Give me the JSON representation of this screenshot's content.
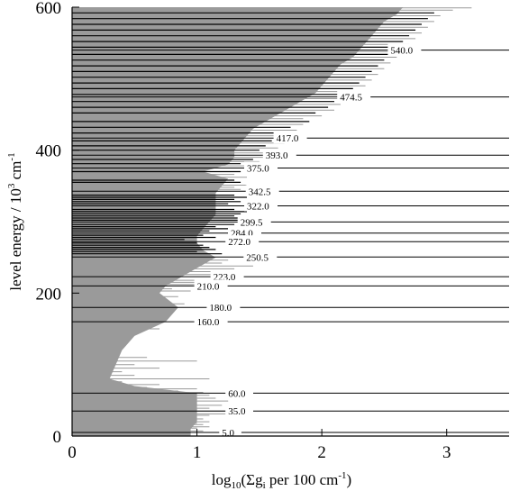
{
  "chart_data": {
    "type": "bar",
    "orientation": "horizontal",
    "xlabel": {
      "prefix": "log",
      "sub1": "10",
      "mid": "(Σg",
      "sub2": "i",
      "tail": " per 100 cm",
      "sup": "-1",
      "close": ")"
    },
    "ylabel": {
      "text": "level energy / 10",
      "sup1": "3",
      "tail": " cm",
      "sup2": "-1"
    },
    "xlim": [
      0,
      3.5
    ],
    "ylim": [
      0,
      600
    ],
    "xticks": [
      0,
      1,
      2,
      3
    ],
    "xtick_labels": [
      "0",
      "1",
      "2",
      "3"
    ],
    "yticks": [
      0,
      200,
      400,
      600
    ],
    "ytick_labels": [
      "0",
      "200",
      "400",
      "600"
    ],
    "grid": false,
    "ionization_thresholds": [
      {
        "energy": 540.0,
        "label": "540.0"
      },
      {
        "energy": 474.5,
        "label": "474.5"
      },
      {
        "energy": 417.0,
        "label": "417.0"
      },
      {
        "energy": 393.0,
        "label": "393.0"
      },
      {
        "energy": 375.0,
        "label": "375.0"
      },
      {
        "energy": 342.5,
        "label": "342.5"
      },
      {
        "energy": 322.0,
        "label": "322.0"
      },
      {
        "energy": 299.5,
        "label": "299.5"
      },
      {
        "energy": 284.0,
        "label": "284.0"
      },
      {
        "energy": 272.0,
        "label": "272.0"
      },
      {
        "energy": 250.5,
        "label": "250.5"
      },
      {
        "energy": 223.0,
        "label": "223.0"
      },
      {
        "energy": 210.0,
        "label": "210.0"
      },
      {
        "energy": 180.0,
        "label": "180.0"
      },
      {
        "energy": 160.0,
        "label": "160.0"
      },
      {
        "energy": 60.0,
        "label": "60.0"
      },
      {
        "energy": 35.0,
        "label": "35.0"
      },
      {
        "energy": 5.0,
        "label": "5.0"
      }
    ],
    "envelope": [
      [
        0,
        0.95
      ],
      [
        10,
        0.95
      ],
      [
        20,
        1.0
      ],
      [
        30,
        1.0
      ],
      [
        40,
        1.0
      ],
      [
        50,
        1.0
      ],
      [
        60,
        1.0
      ],
      [
        70,
        0.5
      ],
      [
        80,
        0.3
      ],
      [
        100,
        0.35
      ],
      [
        120,
        0.4
      ],
      [
        140,
        0.5
      ],
      [
        160,
        0.75
      ],
      [
        180,
        0.85
      ],
      [
        200,
        0.7
      ],
      [
        210,
        0.75
      ],
      [
        220,
        0.85
      ],
      [
        230,
        0.95
      ],
      [
        240,
        1.05
      ],
      [
        250,
        1.15
      ],
      [
        260,
        1.05
      ],
      [
        270,
        1.0
      ],
      [
        280,
        1.0
      ],
      [
        290,
        1.05
      ],
      [
        300,
        1.1
      ],
      [
        310,
        1.15
      ],
      [
        320,
        1.15
      ],
      [
        330,
        1.15
      ],
      [
        340,
        1.15
      ],
      [
        350,
        1.2
      ],
      [
        360,
        1.25
      ],
      [
        370,
        1.05
      ],
      [
        380,
        1.25
      ],
      [
        390,
        1.3
      ],
      [
        400,
        1.3
      ],
      [
        410,
        1.35
      ],
      [
        420,
        1.4
      ],
      [
        430,
        1.45
      ],
      [
        440,
        1.55
      ],
      [
        450,
        1.65
      ],
      [
        460,
        1.75
      ],
      [
        470,
        1.85
      ],
      [
        480,
        1.95
      ],
      [
        490,
        2.0
      ],
      [
        500,
        2.05
      ],
      [
        510,
        2.1
      ],
      [
        520,
        2.15
      ],
      [
        530,
        2.25
      ],
      [
        540,
        2.3
      ],
      [
        550,
        2.35
      ],
      [
        560,
        2.4
      ],
      [
        570,
        2.45
      ],
      [
        580,
        2.5
      ],
      [
        590,
        2.6
      ],
      [
        600,
        2.65
      ]
    ],
    "bars": [
      [
        2,
        0.7,
        "gray"
      ],
      [
        5,
        0.6,
        "gray"
      ],
      [
        7,
        1.05,
        "gray"
      ],
      [
        9,
        0.9,
        "gray"
      ],
      [
        11,
        1.0,
        "gray"
      ],
      [
        13,
        1.1,
        "gray"
      ],
      [
        14,
        0.8,
        "gray"
      ],
      [
        16,
        1.05,
        "gray"
      ],
      [
        18,
        1.0,
        "gray"
      ],
      [
        20,
        1.1,
        "gray"
      ],
      [
        22,
        0.7,
        "gray"
      ],
      [
        24,
        1.05,
        "gray"
      ],
      [
        27,
        0.9,
        "gray"
      ],
      [
        29,
        1.1,
        "gray"
      ],
      [
        31,
        1.4,
        "gray"
      ],
      [
        33,
        0.8,
        "gray"
      ],
      [
        35,
        1.3,
        "gray"
      ],
      [
        37,
        1.0,
        "gray"
      ],
      [
        39,
        1.1,
        "gray"
      ],
      [
        41,
        0.85,
        "gray"
      ],
      [
        43,
        1.2,
        "gray"
      ],
      [
        45,
        1.0,
        "gray"
      ],
      [
        47,
        0.95,
        "gray"
      ],
      [
        49,
        1.25,
        "gray"
      ],
      [
        51,
        1.0,
        "gray"
      ],
      [
        53,
        1.15,
        "gray"
      ],
      [
        55,
        0.9,
        "gray"
      ],
      [
        57,
        1.1,
        "gray"
      ],
      [
        59,
        0.95,
        "gray"
      ],
      [
        61,
        1.05,
        "gray"
      ],
      [
        63,
        0.85,
        "gray"
      ],
      [
        66,
        1.0,
        "gray"
      ],
      [
        68,
        0.6,
        "gray"
      ],
      [
        72,
        0.7,
        "gray"
      ],
      [
        76,
        0.4,
        "gray"
      ],
      [
        80,
        1.1,
        "gray"
      ],
      [
        85,
        0.5,
        "gray"
      ],
      [
        90,
        0.4,
        "gray"
      ],
      [
        95,
        0.7,
        "gray"
      ],
      [
        100,
        0.5,
        "gray"
      ],
      [
        105,
        1.0,
        "gray"
      ],
      [
        110,
        0.6,
        "gray"
      ],
      [
        115,
        0.3,
        "gray"
      ],
      [
        120,
        0.1,
        "gray"
      ],
      [
        135,
        0.3,
        "gray"
      ],
      [
        145,
        0.55,
        "gray"
      ],
      [
        150,
        0.7,
        "gray"
      ],
      [
        155,
        0.4,
        "gray"
      ],
      [
        165,
        0.7,
        "gray"
      ],
      [
        170,
        0.75,
        "gray"
      ],
      [
        175,
        0.8,
        "gray"
      ],
      [
        185,
        0.9,
        "gray"
      ],
      [
        190,
        0.6,
        "gray"
      ],
      [
        195,
        0.85,
        "gray"
      ],
      [
        198,
        0.7,
        "gray"
      ],
      [
        203,
        0.95,
        "gray"
      ],
      [
        206,
        0.8,
        "gray"
      ],
      [
        212,
        1.2,
        "gray"
      ],
      [
        215,
        1.0,
        "gray"
      ],
      [
        218,
        1.3,
        "gray"
      ],
      [
        226,
        1.15,
        "gray"
      ],
      [
        230,
        1.2,
        "gray"
      ],
      [
        234,
        1.3,
        "gray"
      ],
      [
        238,
        1.45,
        "gray"
      ],
      [
        242,
        1.2,
        "gray"
      ],
      [
        246,
        1.25,
        "gray"
      ],
      [
        255,
        1.2,
        "black"
      ],
      [
        258,
        1.0,
        "black"
      ],
      [
        261,
        1.15,
        "black"
      ],
      [
        264,
        1.1,
        "black"
      ],
      [
        267,
        1.05,
        "black"
      ],
      [
        270,
        1.0,
        "black"
      ],
      [
        275,
        0.9,
        "black"
      ],
      [
        278,
        1.15,
        "black"
      ],
      [
        281,
        1.05,
        "black"
      ],
      [
        287,
        1.1,
        "black"
      ],
      [
        290,
        1.25,
        "black"
      ],
      [
        293,
        1.15,
        "black"
      ],
      [
        296,
        1.3,
        "black"
      ],
      [
        302,
        1.35,
        "black"
      ],
      [
        305,
        1.4,
        "black"
      ],
      [
        308,
        1.3,
        "black"
      ],
      [
        311,
        1.35,
        "black"
      ],
      [
        314,
        1.4,
        "black"
      ],
      [
        317,
        1.3,
        "black"
      ],
      [
        325,
        1.25,
        "black"
      ],
      [
        328,
        1.35,
        "black"
      ],
      [
        331,
        1.3,
        "black"
      ],
      [
        334,
        1.4,
        "black"
      ],
      [
        337,
        1.3,
        "black"
      ],
      [
        345,
        1.35,
        "gray"
      ],
      [
        348,
        1.3,
        "gray"
      ],
      [
        351,
        1.4,
        "gray"
      ],
      [
        355,
        1.35,
        "black"
      ],
      [
        358,
        1.3,
        "black"
      ],
      [
        362,
        1.4,
        "gray"
      ],
      [
        366,
        1.3,
        "gray"
      ],
      [
        370,
        1.35,
        "black"
      ],
      [
        378,
        1.4,
        "gray"
      ],
      [
        381,
        1.35,
        "black"
      ],
      [
        384,
        1.5,
        "gray"
      ],
      [
        387,
        1.45,
        "black"
      ],
      [
        390,
        1.55,
        "gray"
      ],
      [
        396,
        1.6,
        "gray"
      ],
      [
        400,
        1.5,
        "black"
      ],
      [
        403,
        1.65,
        "gray"
      ],
      [
        406,
        1.55,
        "black"
      ],
      [
        410,
        1.7,
        "gray"
      ],
      [
        413,
        1.6,
        "black"
      ],
      [
        420,
        1.7,
        "gray"
      ],
      [
        424,
        1.65,
        "black"
      ],
      [
        428,
        1.8,
        "gray"
      ],
      [
        432,
        1.75,
        "black"
      ],
      [
        436,
        1.85,
        "gray"
      ],
      [
        440,
        1.9,
        "black"
      ],
      [
        444,
        1.85,
        "gray"
      ],
      [
        448,
        2.0,
        "gray"
      ],
      [
        452,
        1.95,
        "black"
      ],
      [
        456,
        2.1,
        "gray"
      ],
      [
        460,
        2.05,
        "black"
      ],
      [
        464,
        2.15,
        "gray"
      ],
      [
        468,
        2.1,
        "black"
      ],
      [
        472,
        2.2,
        "gray"
      ],
      [
        478,
        2.15,
        "black"
      ],
      [
        482,
        2.3,
        "gray"
      ],
      [
        486,
        2.25,
        "black"
      ],
      [
        490,
        2.35,
        "gray"
      ],
      [
        494,
        2.3,
        "black"
      ],
      [
        498,
        2.4,
        "gray"
      ],
      [
        502,
        2.35,
        "black"
      ],
      [
        506,
        2.45,
        "gray"
      ],
      [
        510,
        2.4,
        "black"
      ],
      [
        514,
        2.5,
        "gray"
      ],
      [
        518,
        2.45,
        "black"
      ],
      [
        522,
        2.55,
        "gray"
      ],
      [
        526,
        2.5,
        "black"
      ],
      [
        530,
        2.6,
        "gray"
      ],
      [
        534,
        2.55,
        "black"
      ],
      [
        538,
        2.65,
        "gray"
      ],
      [
        544,
        2.6,
        "black"
      ],
      [
        548,
        2.7,
        "gray"
      ],
      [
        552,
        2.65,
        "black"
      ],
      [
        556,
        2.75,
        "gray"
      ],
      [
        560,
        2.7,
        "black"
      ],
      [
        564,
        2.8,
        "gray"
      ],
      [
        568,
        2.75,
        "black"
      ],
      [
        572,
        2.85,
        "gray"
      ],
      [
        576,
        2.8,
        "black"
      ],
      [
        580,
        2.9,
        "gray"
      ],
      [
        584,
        2.85,
        "black"
      ],
      [
        588,
        2.95,
        "gray"
      ],
      [
        592,
        2.9,
        "black"
      ],
      [
        596,
        3.05,
        "gray"
      ],
      [
        599,
        3.2,
        "gray"
      ]
    ]
  },
  "colors": {
    "fill": "#9a9a9a",
    "light_bar": "#c8c8c8",
    "dark_bar": "#000000",
    "axis": "#000000"
  }
}
